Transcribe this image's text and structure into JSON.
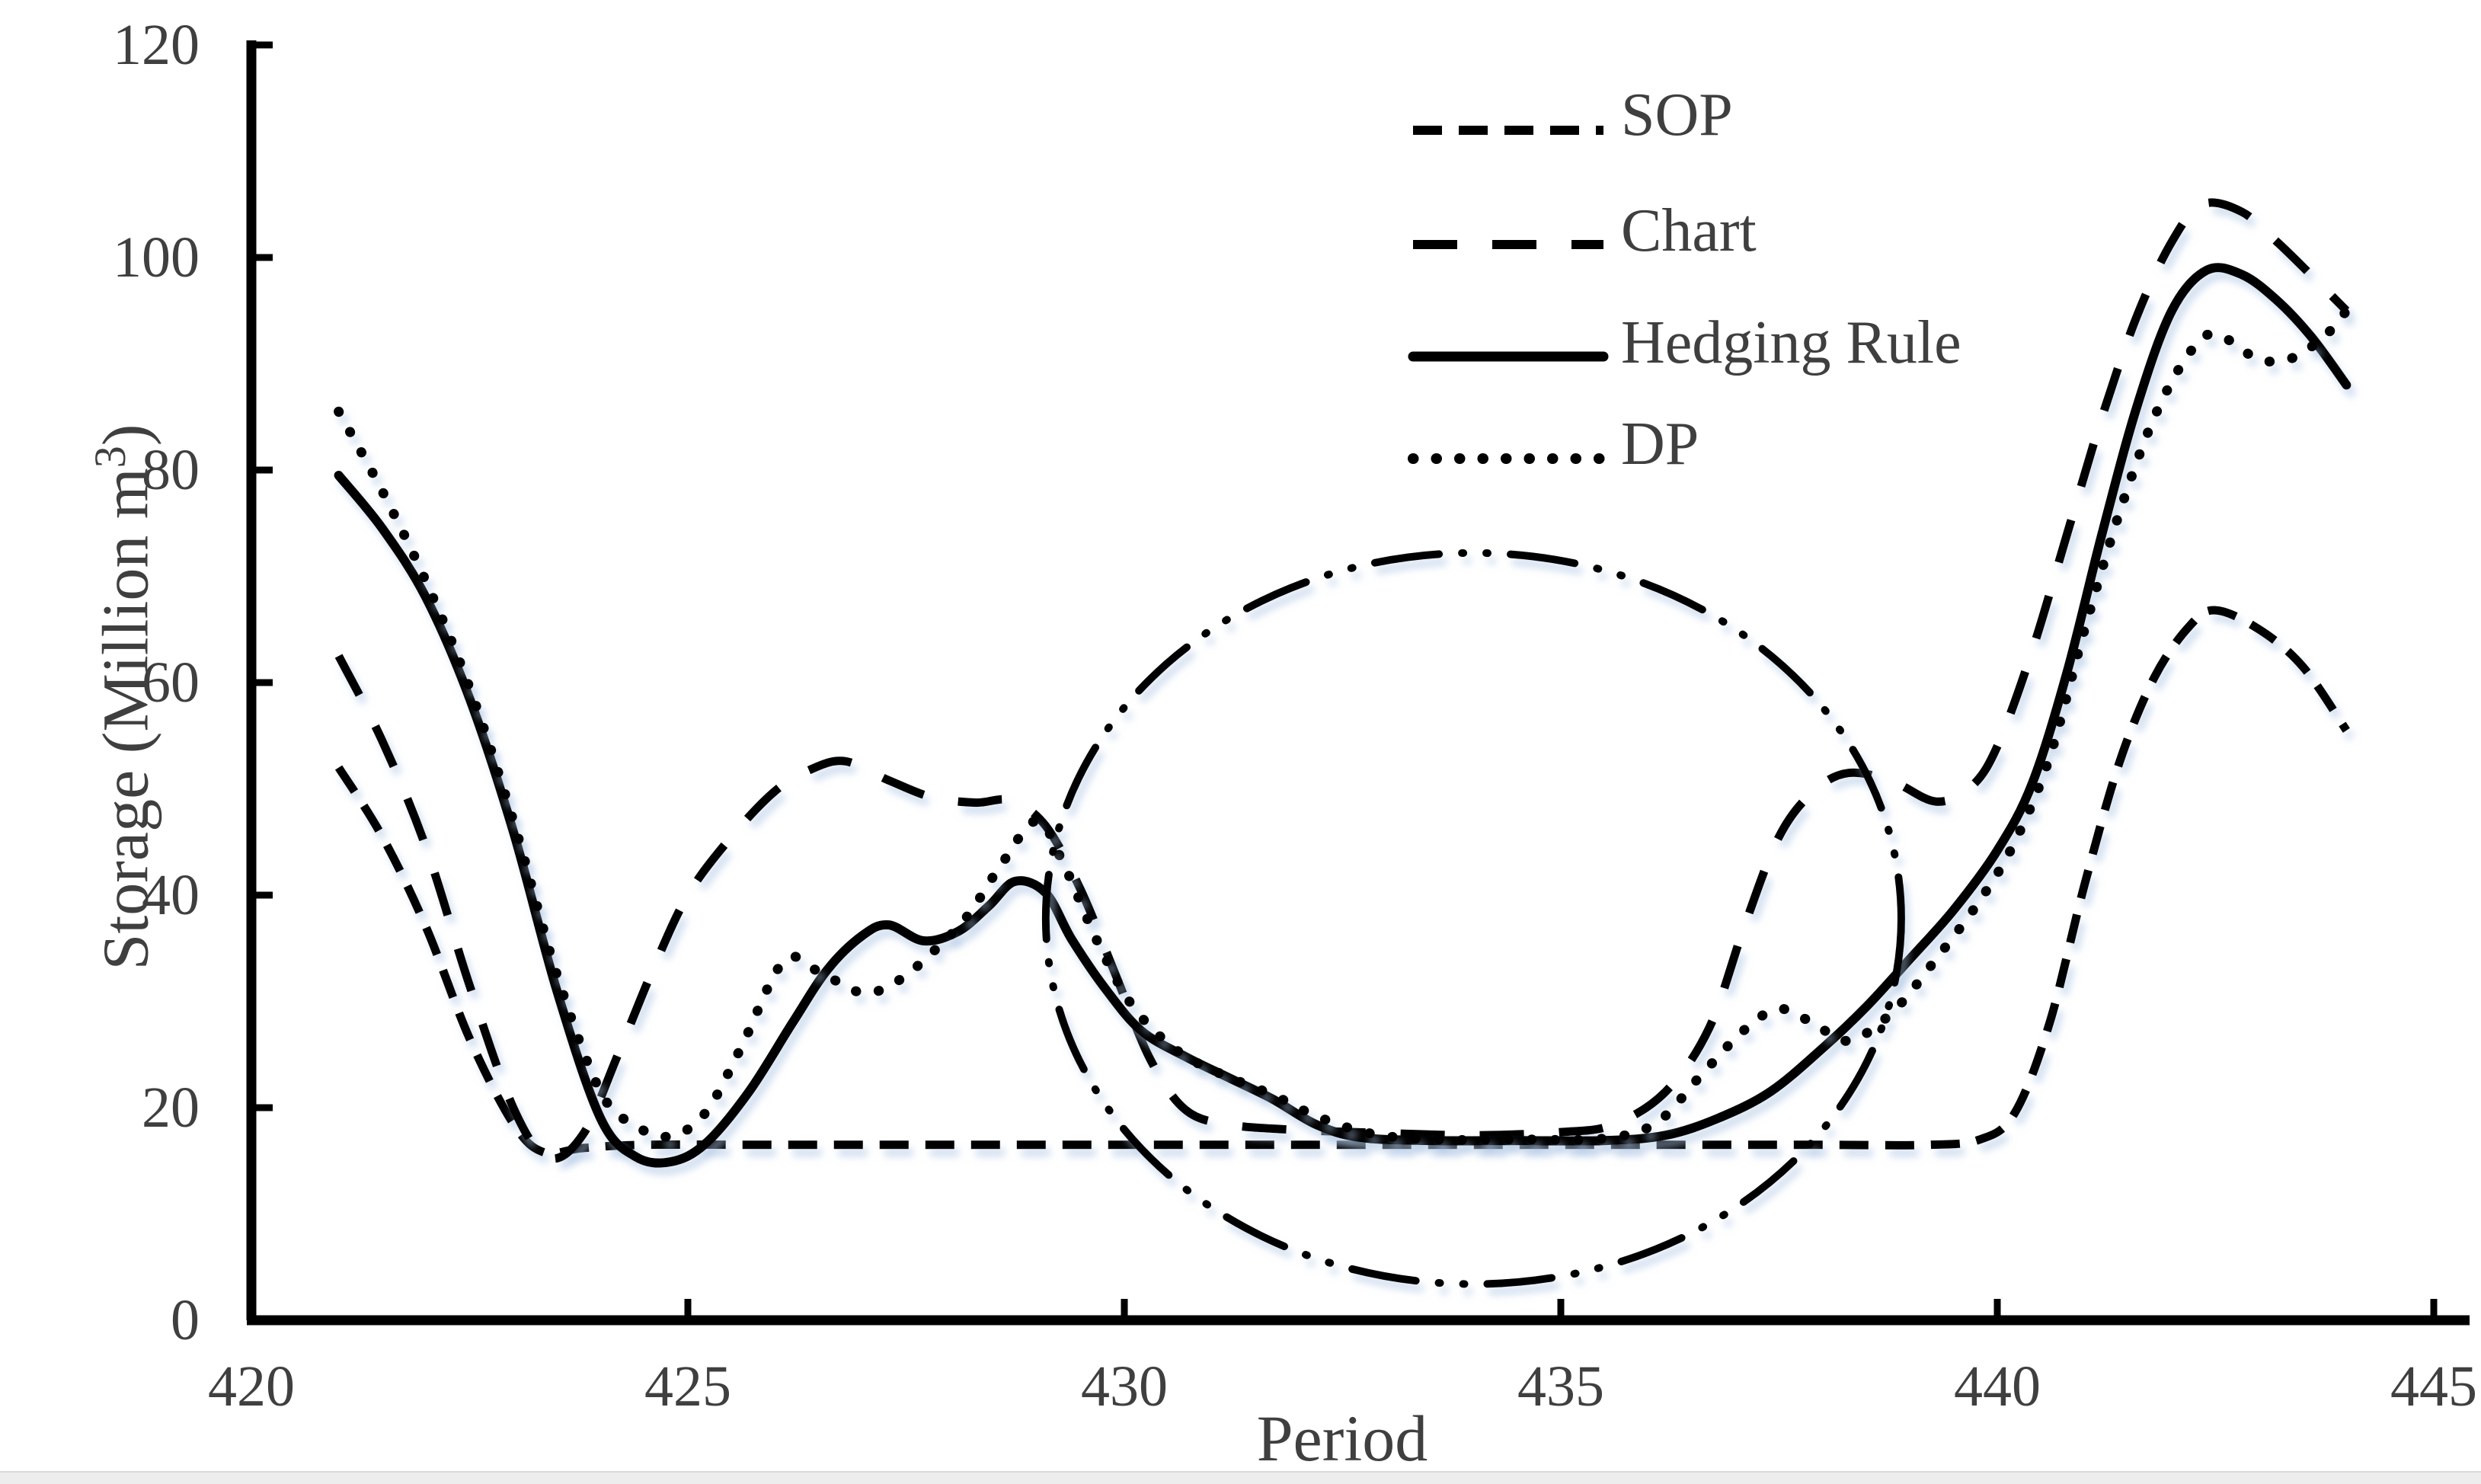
{
  "page": {
    "background": "#ffffff",
    "line_color": "#000000",
    "label_color": "#3f3f3f",
    "shadow_color": "#aac4e2",
    "bottom_bar_color": "#ededed"
  },
  "axes": {
    "x_title": "Period",
    "y_title_prefix": "Storage (Million m",
    "y_title_sup": "3",
    "y_title_suffix": ")"
  },
  "chart_data": {
    "type": "line",
    "title": "",
    "xlabel": "Period",
    "ylabel": "Storage (Million m3)",
    "xlim": [
      420,
      445
    ],
    "ylim": [
      0,
      120
    ],
    "x_ticks": [
      420,
      425,
      430,
      435,
      440,
      445
    ],
    "y_ticks": [
      0,
      20,
      40,
      60,
      80,
      100,
      120
    ],
    "grid": false,
    "legend_position": "top-right-inside",
    "series": [
      {
        "name": "SOP",
        "style": "dashed-dense",
        "dash": "38 22",
        "linecap": "butt",
        "width": 11,
        "color": "#000000",
        "points": [
          [
            421,
            52
          ],
          [
            421.5,
            45.5
          ],
          [
            422,
            37
          ],
          [
            422.5,
            26.5
          ],
          [
            423,
            18.5
          ],
          [
            423.35,
            15.8
          ],
          [
            423.8,
            16.2
          ],
          [
            424.5,
            16.5
          ],
          [
            426,
            16.5
          ],
          [
            428,
            16.5
          ],
          [
            430,
            16.5
          ],
          [
            432,
            16.5
          ],
          [
            434,
            16.5
          ],
          [
            436,
            16.5
          ],
          [
            438,
            16.5
          ],
          [
            439.2,
            16.5
          ],
          [
            439.8,
            17
          ],
          [
            440.2,
            19.5
          ],
          [
            440.6,
            28
          ],
          [
            441,
            41
          ],
          [
            441.4,
            52.5
          ],
          [
            441.8,
            60.5
          ],
          [
            442.2,
            65.3
          ],
          [
            442.5,
            66.8
          ],
          [
            443,
            65
          ],
          [
            443.5,
            61.5
          ],
          [
            444,
            55.5
          ]
        ]
      },
      {
        "name": "Chart",
        "style": "dashed-long",
        "dash": "58 46",
        "linecap": "butt",
        "width": 11,
        "color": "#000000",
        "points": [
          [
            421,
            62.5
          ],
          [
            421.5,
            54.5
          ],
          [
            422,
            44.5
          ],
          [
            422.5,
            31.5
          ],
          [
            423,
            20
          ],
          [
            423.4,
            15.3
          ],
          [
            423.8,
            17.5
          ],
          [
            424.2,
            25
          ],
          [
            424.6,
            33
          ],
          [
            425,
            40
          ],
          [
            425.5,
            45.5
          ],
          [
            426,
            49.8
          ],
          [
            426.4,
            51.8
          ],
          [
            426.8,
            52.6
          ],
          [
            427.3,
            50.8
          ],
          [
            427.8,
            49.2
          ],
          [
            428.3,
            48.7
          ],
          [
            428.7,
            48.9
          ],
          [
            429.1,
            46.5
          ],
          [
            429.5,
            40.5
          ],
          [
            429.9,
            32.5
          ],
          [
            430.3,
            24.5
          ],
          [
            430.7,
            19.8
          ],
          [
            431.2,
            18.4
          ],
          [
            432,
            17.9
          ],
          [
            433,
            17.6
          ],
          [
            434,
            17.4
          ],
          [
            435,
            17.7
          ],
          [
            435.6,
            18.4
          ],
          [
            436.2,
            21.5
          ],
          [
            436.7,
            27.5
          ],
          [
            437.1,
            37
          ],
          [
            437.5,
            45.5
          ],
          [
            437.9,
            49.8
          ],
          [
            438.3,
            51.5
          ],
          [
            438.8,
            50.7
          ],
          [
            439.3,
            48.8
          ],
          [
            439.7,
            50.2
          ],
          [
            440,
            54
          ],
          [
            440.4,
            63
          ],
          [
            440.8,
            74
          ],
          [
            441.2,
            85
          ],
          [
            441.6,
            94.5
          ],
          [
            442,
            101.5
          ],
          [
            442.35,
            105
          ],
          [
            442.8,
            104.3
          ],
          [
            443.2,
            101.5
          ],
          [
            443.6,
            98.3
          ],
          [
            444,
            95
          ]
        ]
      },
      {
        "name": "Hedging Rule",
        "style": "solid",
        "dash": "",
        "linecap": "round",
        "width": 12,
        "color": "#000000",
        "points": [
          [
            421,
            79.5
          ],
          [
            421.5,
            74.5
          ],
          [
            422,
            68
          ],
          [
            422.5,
            58.5
          ],
          [
            423,
            46
          ],
          [
            423.5,
            31
          ],
          [
            424,
            19
          ],
          [
            424.4,
            15.4
          ],
          [
            424.8,
            14.9
          ],
          [
            425.2,
            16.6
          ],
          [
            425.7,
            21.5
          ],
          [
            426.2,
            28
          ],
          [
            426.6,
            33
          ],
          [
            427,
            36.2
          ],
          [
            427.3,
            37.2
          ],
          [
            427.7,
            35.7
          ],
          [
            428.1,
            36.6
          ],
          [
            428.45,
            39
          ],
          [
            428.75,
            41.3
          ],
          [
            429.1,
            40.2
          ],
          [
            429.4,
            35.8
          ],
          [
            429.8,
            31
          ],
          [
            430.2,
            27.2
          ],
          [
            430.7,
            24.8
          ],
          [
            431.2,
            22.8
          ],
          [
            431.7,
            20.8
          ],
          [
            432.2,
            18.4
          ],
          [
            432.7,
            17.2
          ],
          [
            433.5,
            16.9
          ],
          [
            434.5,
            16.9
          ],
          [
            435.5,
            16.9
          ],
          [
            436.2,
            17.4
          ],
          [
            436.8,
            19
          ],
          [
            437.4,
            21.5
          ],
          [
            438,
            25.6
          ],
          [
            438.5,
            29.5
          ],
          [
            439,
            34
          ],
          [
            439.5,
            38.6
          ],
          [
            440,
            44.2
          ],
          [
            440.4,
            50.5
          ],
          [
            440.8,
            61
          ],
          [
            441.2,
            74
          ],
          [
            441.6,
            86
          ],
          [
            442,
            95
          ],
          [
            442.4,
            98.8
          ],
          [
            442.8,
            98.4
          ],
          [
            443.2,
            96
          ],
          [
            443.6,
            92.5
          ],
          [
            444,
            88
          ]
        ]
      },
      {
        "name": "DP",
        "style": "dotted",
        "dash": "0.5 30",
        "linecap": "round",
        "width": 13,
        "color": "#000000",
        "points": [
          [
            421,
            85.5
          ],
          [
            421.5,
            78
          ],
          [
            422,
            69.5
          ],
          [
            422.5,
            59.5
          ],
          [
            423,
            47
          ],
          [
            423.5,
            32.5
          ],
          [
            424,
            21.5
          ],
          [
            424.4,
            18.3
          ],
          [
            424.8,
            17.3
          ],
          [
            425.2,
            19.5
          ],
          [
            425.6,
            25.5
          ],
          [
            426.1,
            33.8
          ],
          [
            426.5,
            32.8
          ],
          [
            427,
            30.8
          ],
          [
            427.4,
            31.9
          ],
          [
            427.8,
            34.6
          ],
          [
            428.2,
            38
          ],
          [
            428.6,
            43
          ],
          [
            429,
            47
          ],
          [
            429.3,
            43
          ],
          [
            429.7,
            35.5
          ],
          [
            430.1,
            29.5
          ],
          [
            430.6,
            25.4
          ],
          [
            431.1,
            23.2
          ],
          [
            431.7,
            21.2
          ],
          [
            432.2,
            19.2
          ],
          [
            432.8,
            17.6
          ],
          [
            433.5,
            17
          ],
          [
            434.5,
            17
          ],
          [
            435.5,
            17.1
          ],
          [
            436.1,
            18.6
          ],
          [
            436.6,
            23
          ],
          [
            437.1,
            27.3
          ],
          [
            437.5,
            29.3
          ],
          [
            437.9,
            27.9
          ],
          [
            438.3,
            26.3
          ],
          [
            438.8,
            29
          ],
          [
            439.3,
            34
          ],
          [
            439.8,
            39.5
          ],
          [
            440.2,
            45
          ],
          [
            440.6,
            53
          ],
          [
            441,
            65
          ],
          [
            441.4,
            76
          ],
          [
            441.8,
            85
          ],
          [
            442.2,
            91
          ],
          [
            442.5,
            92.8
          ],
          [
            443,
            90.4
          ],
          [
            443.4,
            90.6
          ],
          [
            443.8,
            93
          ],
          [
            444,
            95
          ]
        ]
      }
    ],
    "annotation_ellipse": {
      "center_x": 434.0,
      "center_y": 37.8,
      "rx": 4.9,
      "ry": 34.4,
      "style": "dash-dot-dot",
      "dash": "85 30 2 30 2 30",
      "linecap": "round",
      "width": 10,
      "color": "#000000"
    }
  }
}
